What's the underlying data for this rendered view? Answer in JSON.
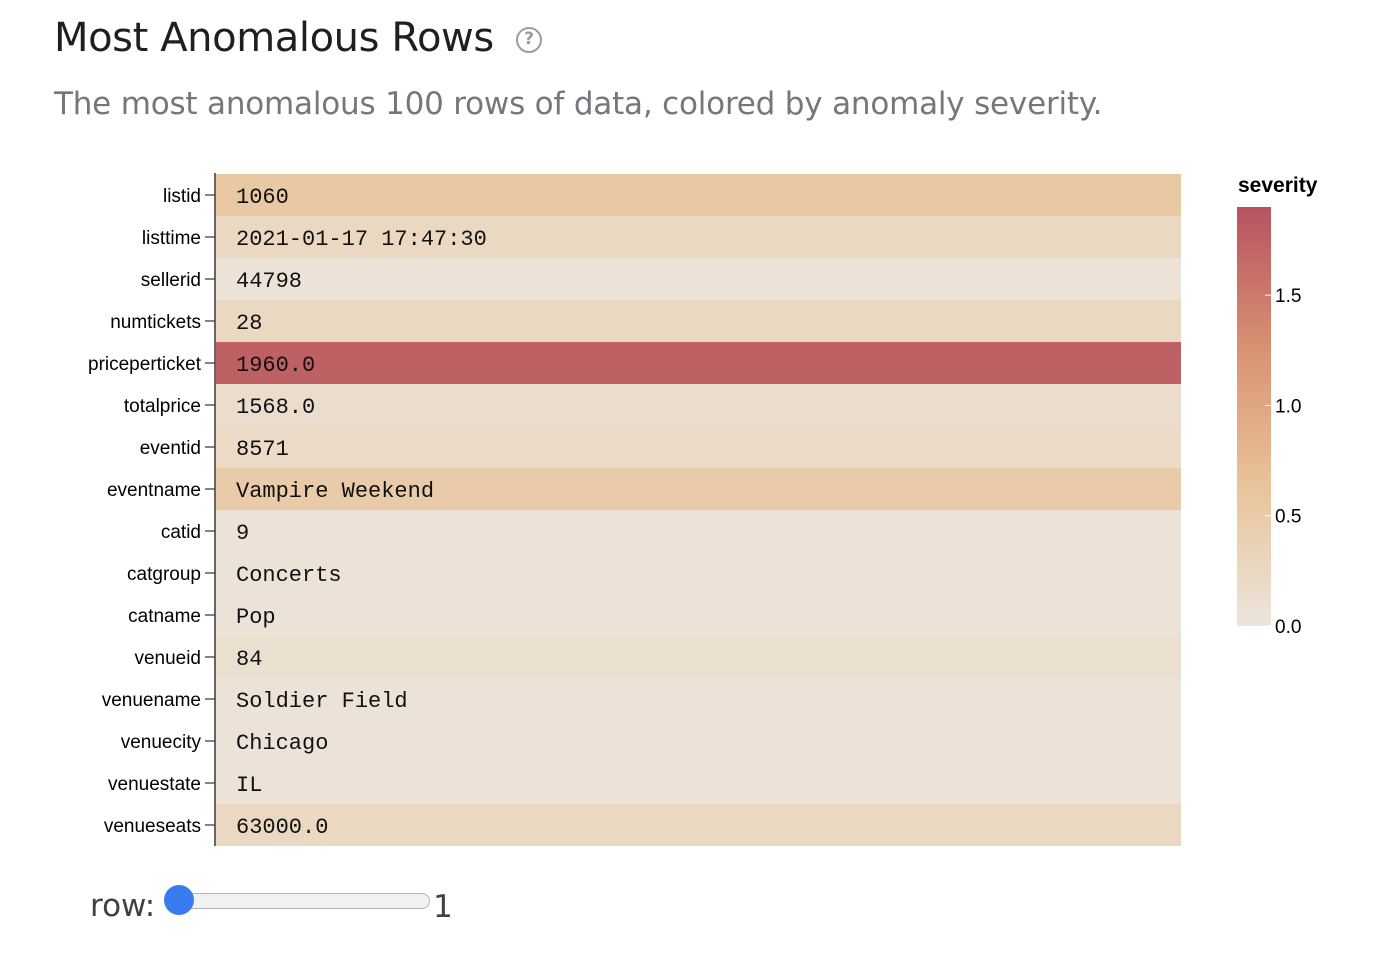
{
  "header": {
    "title": "Most Anomalous Rows",
    "help_icon": "question-circle-icon",
    "subtitle": "The most anomalous 100 rows of data, colored by anomaly severity."
  },
  "chart_data": {
    "type": "heatmap",
    "rows": [
      {
        "field": "listid",
        "value": "1060",
        "severity": 0.55
      },
      {
        "field": "listtime",
        "value": "2021-01-17 17:47:30",
        "severity": 0.25
      },
      {
        "field": "sellerid",
        "value": "44798",
        "severity": 0.05
      },
      {
        "field": "numtickets",
        "value": "28",
        "severity": 0.25
      },
      {
        "field": "priceperticket",
        "value": "1960.0",
        "severity": 1.75
      },
      {
        "field": "totalprice",
        "value": "1568.0",
        "severity": 0.15
      },
      {
        "field": "eventid",
        "value": "8571",
        "severity": 0.2
      },
      {
        "field": "eventname",
        "value": "Vampire Weekend",
        "severity": 0.5
      },
      {
        "field": "catid",
        "value": "9",
        "severity": 0.05
      },
      {
        "field": "catgroup",
        "value": "Concerts",
        "severity": 0.05
      },
      {
        "field": "catname",
        "value": "Pop",
        "severity": 0.05
      },
      {
        "field": "venueid",
        "value": "84",
        "severity": 0.12
      },
      {
        "field": "venuename",
        "value": "Soldier Field",
        "severity": 0.05
      },
      {
        "field": "venuecity",
        "value": "Chicago",
        "severity": 0.05
      },
      {
        "field": "venuestate",
        "value": "IL",
        "severity": 0.05
      },
      {
        "field": "venueseats",
        "value": "63000.0",
        "severity": 0.25
      }
    ],
    "legend": {
      "title": "severity",
      "domain": [
        0,
        1.9
      ],
      "ticks": [
        {
          "value": 1.5,
          "label": "1.5"
        },
        {
          "value": 1.0,
          "label": "1.0"
        },
        {
          "value": 0.5,
          "label": "0.5"
        },
        {
          "value": 0.0,
          "label": "0.0"
        }
      ],
      "color_stops": [
        "#ece5dc",
        "#e9c49b",
        "#d99272",
        "#b65260"
      ]
    }
  },
  "slider": {
    "label": "row:",
    "value": "1",
    "min": 1,
    "max": 100,
    "current": 1
  }
}
